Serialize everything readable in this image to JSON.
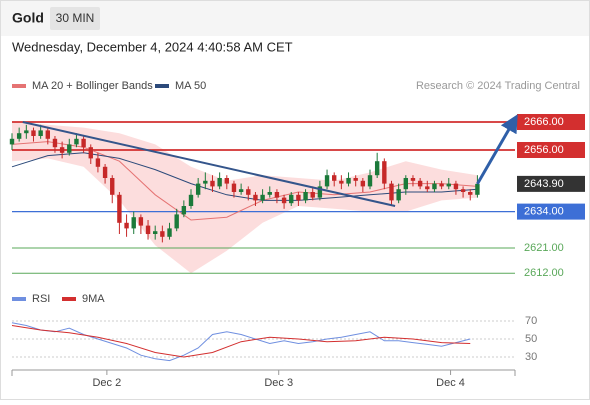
{
  "header": {
    "title": "Gold",
    "interval": "30 MIN",
    "timestamp": "Wednesday, December 4, 2024 4:40:58 AM CET",
    "credit": "Research © 2024 Trading Central"
  },
  "chart_data": [
    {
      "type": "candlestick",
      "xlim": [
        0,
        140.5
      ],
      "ylim": [
        2608,
        2674
      ],
      "xticks": [
        {
          "value": 26.5,
          "label": "Dec 2"
        },
        {
          "value": 74.5,
          "label": "Dec 3"
        },
        {
          "value": 122.5,
          "label": "Dec 4"
        }
      ],
      "up_color": "#1b7a3a",
      "down_color": "#c62828",
      "x": [
        0,
        2,
        4,
        6,
        8,
        10,
        12,
        14,
        16,
        18,
        20,
        22,
        24,
        26,
        28,
        30,
        32,
        34,
        36,
        38,
        40,
        42,
        44,
        46,
        48,
        50,
        52,
        54,
        56,
        58,
        60,
        62,
        64,
        66,
        68,
        70,
        72,
        74,
        76,
        78,
        80,
        82,
        84,
        86,
        88,
        90,
        92,
        94,
        96,
        98,
        100,
        102,
        104,
        106,
        108,
        110,
        112,
        114,
        116,
        118,
        120,
        122,
        124,
        126,
        128,
        130
      ],
      "open": [
        2658,
        2660,
        2662,
        2663,
        2661,
        2663,
        2660,
        2657,
        2655,
        2658,
        2660,
        2657,
        2653,
        2650,
        2646,
        2640,
        2630,
        2628,
        2632,
        2629,
        2626,
        2627,
        2625,
        2628,
        2633,
        2636,
        2640,
        2644,
        2645,
        2643,
        2646,
        2644,
        2641,
        2642,
        2640,
        2638,
        2640,
        2641,
        2639,
        2637,
        2640,
        2638,
        2641,
        2639,
        2643,
        2647,
        2645,
        2644,
        2646,
        2645,
        2643,
        2647,
        2652,
        2644,
        2638,
        2642,
        2646,
        2645,
        2643,
        2642,
        2644,
        2643,
        2644,
        2642,
        2641,
        2640
      ],
      "high": [
        2662,
        2664,
        2665,
        2664,
        2665,
        2664,
        2661,
        2659,
        2660,
        2662,
        2661,
        2658,
        2655,
        2651,
        2647,
        2641,
        2633,
        2634,
        2633,
        2631,
        2629,
        2629,
        2630,
        2635,
        2638,
        2642,
        2646,
        2648,
        2647,
        2648,
        2647,
        2645,
        2644,
        2643,
        2641,
        2642,
        2643,
        2642,
        2640,
        2641,
        2641,
        2642,
        2643,
        2645,
        2649,
        2648,
        2647,
        2648,
        2647,
        2646,
        2649,
        2655,
        2653,
        2645,
        2644,
        2647,
        2647,
        2646,
        2645,
        2645,
        2645,
        2646,
        2645,
        2643,
        2642,
        2647
      ],
      "low": [
        2656,
        2659,
        2660,
        2659,
        2660,
        2658,
        2655,
        2653,
        2654,
        2657,
        2655,
        2651,
        2648,
        2644,
        2637,
        2626,
        2625,
        2626,
        2626,
        2624,
        2624,
        2623,
        2624,
        2627,
        2632,
        2635,
        2639,
        2642,
        2641,
        2642,
        2642,
        2639,
        2640,
        2638,
        2636,
        2637,
        2639,
        2637,
        2635,
        2636,
        2636,
        2637,
        2638,
        2638,
        2642,
        2643,
        2642,
        2643,
        2643,
        2641,
        2642,
        2646,
        2642,
        2636,
        2637,
        2640,
        2643,
        2642,
        2641,
        2641,
        2642,
        2642,
        2640,
        2639,
        2638,
        2639
      ],
      "close": [
        2660,
        2662,
        2663,
        2661,
        2663,
        2660,
        2657,
        2655,
        2658,
        2660,
        2657,
        2653,
        2650,
        2646,
        2640,
        2630,
        2628,
        2632,
        2629,
        2626,
        2627,
        2625,
        2628,
        2633,
        2636,
        2640,
        2644,
        2645,
        2643,
        2646,
        2644,
        2641,
        2642,
        2640,
        2638,
        2640,
        2641,
        2639,
        2637,
        2640,
        2638,
        2641,
        2639,
        2643,
        2647,
        2645,
        2644,
        2646,
        2645,
        2643,
        2647,
        2652,
        2644,
        2638,
        2642,
        2646,
        2645,
        2643,
        2642,
        2644,
        2643,
        2644,
        2642,
        2641,
        2640,
        2643.9
      ],
      "indicator_x": [
        0,
        10,
        20,
        30,
        40,
        50,
        60,
        70,
        80,
        90,
        100,
        110,
        120,
        130
      ],
      "ma20": {
        "name": "MA 20 + Bollinger Bands",
        "color": "#e57373",
        "band_color": "#fbd5d5",
        "values": [
          2658,
          2659,
          2657,
          2652,
          2640,
          2631,
          2632,
          2638,
          2641,
          2640,
          2641,
          2644,
          2644,
          2643
        ],
        "upper": [
          2666,
          2665,
          2664,
          2662,
          2658,
          2650,
          2645,
          2647,
          2646,
          2645,
          2648,
          2652,
          2649,
          2647
        ],
        "lower": [
          2652,
          2653,
          2650,
          2638,
          2622,
          2612,
          2620,
          2630,
          2636,
          2635,
          2634,
          2634,
          2638,
          2639
        ]
      },
      "ma50": {
        "name": "MA 50",
        "color": "#2c4a7a",
        "values": [
          2650,
          2654,
          2655,
          2653,
          2649,
          2644,
          2640,
          2638,
          2638,
          2639,
          2640,
          2641,
          2641,
          2642
        ]
      },
      "levels": [
        {
          "value": 2666,
          "label": "2666.00",
          "color": "#d32f2f",
          "style": "resistance"
        },
        {
          "value": 2656,
          "label": "2656.00",
          "color": "#d32f2f",
          "style": "resistance"
        },
        {
          "value": 2643.9,
          "label": "2643.90",
          "color": "#333333",
          "style": "current"
        },
        {
          "value": 2634,
          "label": "2634.00",
          "color": "#3d6fd6",
          "style": "pivot"
        },
        {
          "value": 2621,
          "label": "2621.00",
          "color": "#5aa85a",
          "style": "support"
        },
        {
          "value": 2612,
          "label": "2612.00",
          "color": "#5aa85a",
          "style": "support"
        }
      ],
      "trendline": {
        "x": [
          3,
          107
        ],
        "y": [
          2666,
          2636
        ],
        "color": "#34558b"
      },
      "forecast_arrow": {
        "x": [
          130,
          140
        ],
        "y": [
          2643.9,
          2666
        ],
        "color": "#2f5fa8"
      }
    },
    {
      "type": "line",
      "ylim": [
        18,
        80
      ],
      "yticks": [
        70,
        50,
        30
      ],
      "series": [
        {
          "name": "RSI",
          "color": "#6f8fe0",
          "x": [
            0,
            4,
            8,
            12,
            16,
            20,
            24,
            28,
            32,
            36,
            40,
            44,
            48,
            52,
            56,
            60,
            64,
            68,
            72,
            76,
            80,
            84,
            88,
            92,
            96,
            100,
            104,
            108,
            112,
            116,
            120,
            124,
            128
          ],
          "values": [
            68,
            65,
            60,
            58,
            62,
            55,
            50,
            45,
            40,
            32,
            28,
            26,
            32,
            40,
            55,
            58,
            55,
            50,
            45,
            48,
            45,
            47,
            50,
            52,
            55,
            58,
            48,
            48,
            46,
            44,
            42,
            46,
            50
          ]
        },
        {
          "name": "9MA",
          "color": "#d32f2f",
          "x": [
            0,
            8,
            16,
            24,
            32,
            40,
            48,
            56,
            64,
            72,
            80,
            88,
            96,
            104,
            112,
            120,
            128
          ],
          "values": [
            65,
            60,
            57,
            52,
            45,
            35,
            30,
            35,
            47,
            52,
            50,
            47,
            48,
            52,
            50,
            46,
            45
          ]
        }
      ]
    }
  ]
}
